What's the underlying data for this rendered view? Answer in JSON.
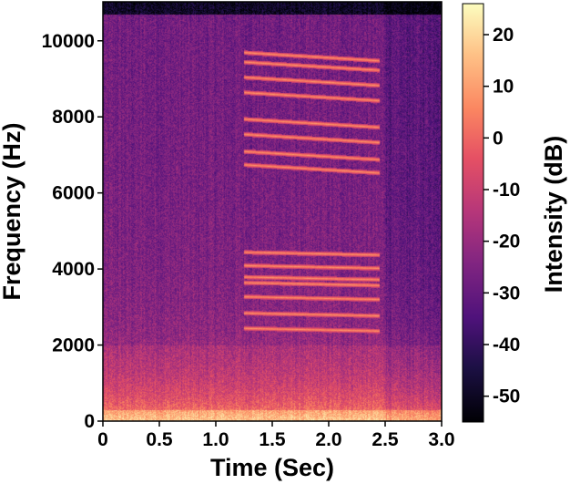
{
  "chart_data": {
    "type": "heatmap",
    "title": "",
    "xlabel": "Time (Sec)",
    "ylabel": "Frequency (Hz)",
    "colorbar_label": "Intensity (dB)",
    "colormap": "magma",
    "xlim": [
      0,
      3.0
    ],
    "ylim": [
      0,
      11025
    ],
    "clim": [
      -55,
      26
    ],
    "xticks": [
      0,
      0.5,
      1.0,
      1.5,
      2.0,
      2.5,
      3.0
    ],
    "xtick_labels": [
      "0",
      "0.5",
      "1.0",
      "1.5",
      "2.0",
      "2.5",
      "3.0"
    ],
    "yticks": [
      0,
      2000,
      4000,
      6000,
      8000,
      10000
    ],
    "ytick_labels": [
      "0",
      "2000",
      "4000",
      "6000",
      "8000",
      "10000"
    ],
    "cticks": [
      20,
      10,
      0,
      -10,
      -20,
      -30,
      -40,
      -50
    ],
    "ctick_labels": [
      "20",
      "10",
      "0",
      "-10",
      "-20",
      "-30",
      "-40",
      "-50"
    ],
    "harmonic_segment": {
      "t_start": 1.25,
      "t_end": 2.45,
      "harmonic_freqs_hz": [
        2450,
        2850,
        3280,
        3650,
        3800,
        4100,
        4450,
        6750,
        7100,
        7550,
        7950,
        8650,
        9050,
        9450,
        9700
      ],
      "level_db": 8
    },
    "low_frequency_band": {
      "f_max_hz": 2000,
      "level_db": 0
    },
    "background_level_db": -28
  }
}
